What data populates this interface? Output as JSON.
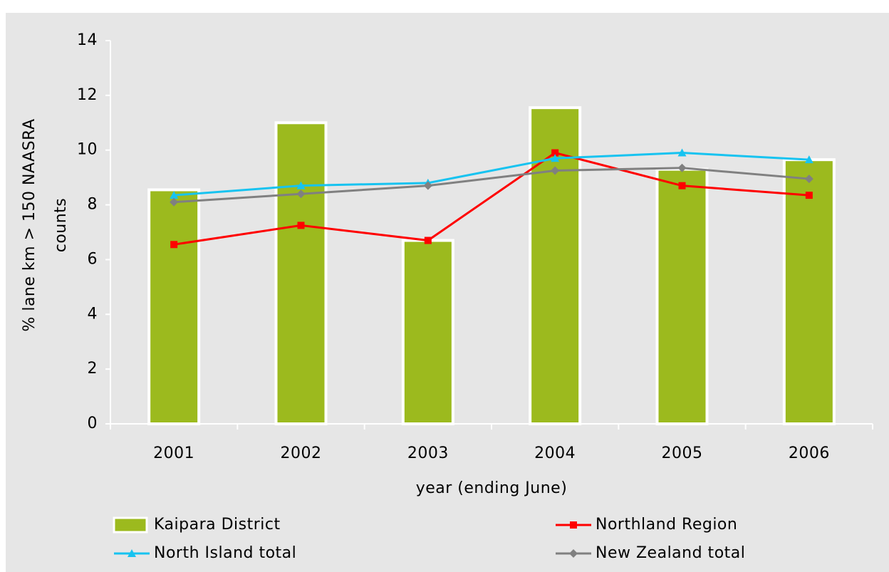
{
  "chart_data": {
    "type": "bar-line",
    "xlabel": "year (ending June)",
    "ylabel": [
      "% lane km > 150 NAASRA",
      "counts"
    ],
    "categories": [
      "2001",
      "2002",
      "2003",
      "2004",
      "2005",
      "2006"
    ],
    "ylim": [
      0,
      14
    ],
    "yticks": [
      0,
      2,
      4,
      6,
      8,
      10,
      12,
      14
    ],
    "legend": "bottom",
    "series": [
      {
        "name": "Kaipara District",
        "type": "bar",
        "color": "#9cba1e",
        "values": [
          8.55,
          11.0,
          6.7,
          11.55,
          9.3,
          9.65
        ]
      },
      {
        "name": "Northland Region",
        "type": "line",
        "marker": "square",
        "color": "#ff0000",
        "values": [
          6.55,
          7.25,
          6.7,
          9.9,
          8.7,
          8.35
        ]
      },
      {
        "name": "North Island total",
        "type": "line",
        "marker": "triangle",
        "color": "#17c3f0",
        "values": [
          8.35,
          8.7,
          8.8,
          9.7,
          9.9,
          9.65
        ]
      },
      {
        "name": "New Zealand total",
        "type": "line",
        "marker": "diamond",
        "color": "#808080",
        "values": [
          8.1,
          8.4,
          8.7,
          9.25,
          9.35,
          8.95
        ]
      }
    ]
  }
}
